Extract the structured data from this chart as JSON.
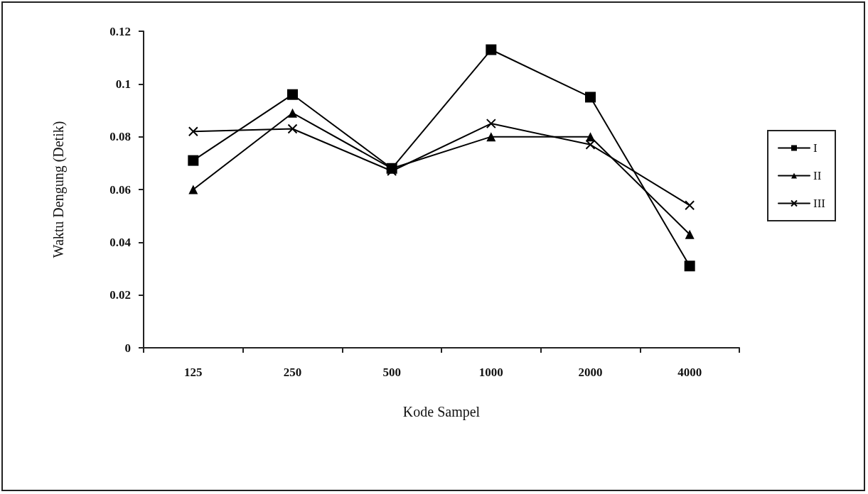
{
  "chart_data": {
    "type": "line",
    "xlabel": "Kode Sampel",
    "ylabel": "Waktu Dengung (Detik)",
    "categories": [
      "125",
      "250",
      "500",
      "1000",
      "2000",
      "4000"
    ],
    "series": [
      {
        "name": "I",
        "color": "#000000",
        "marker": "square",
        "values": [
          0.071,
          0.096,
          0.068,
          0.113,
          0.095,
          0.031
        ]
      },
      {
        "name": "II",
        "color": "#000000",
        "marker": "triangle",
        "values": [
          0.06,
          0.089,
          0.068,
          0.08,
          0.08,
          0.043
        ]
      },
      {
        "name": "III",
        "color": "#000000",
        "marker": "cross",
        "values": [
          0.082,
          0.083,
          0.067,
          0.085,
          0.077,
          0.054
        ]
      }
    ],
    "ylim": [
      0,
      0.12
    ],
    "yticks": [
      0,
      0.02,
      0.04,
      0.06,
      0.08,
      0.1,
      0.12
    ],
    "grid": false,
    "legend": "right",
    "line_style": "solid"
  }
}
